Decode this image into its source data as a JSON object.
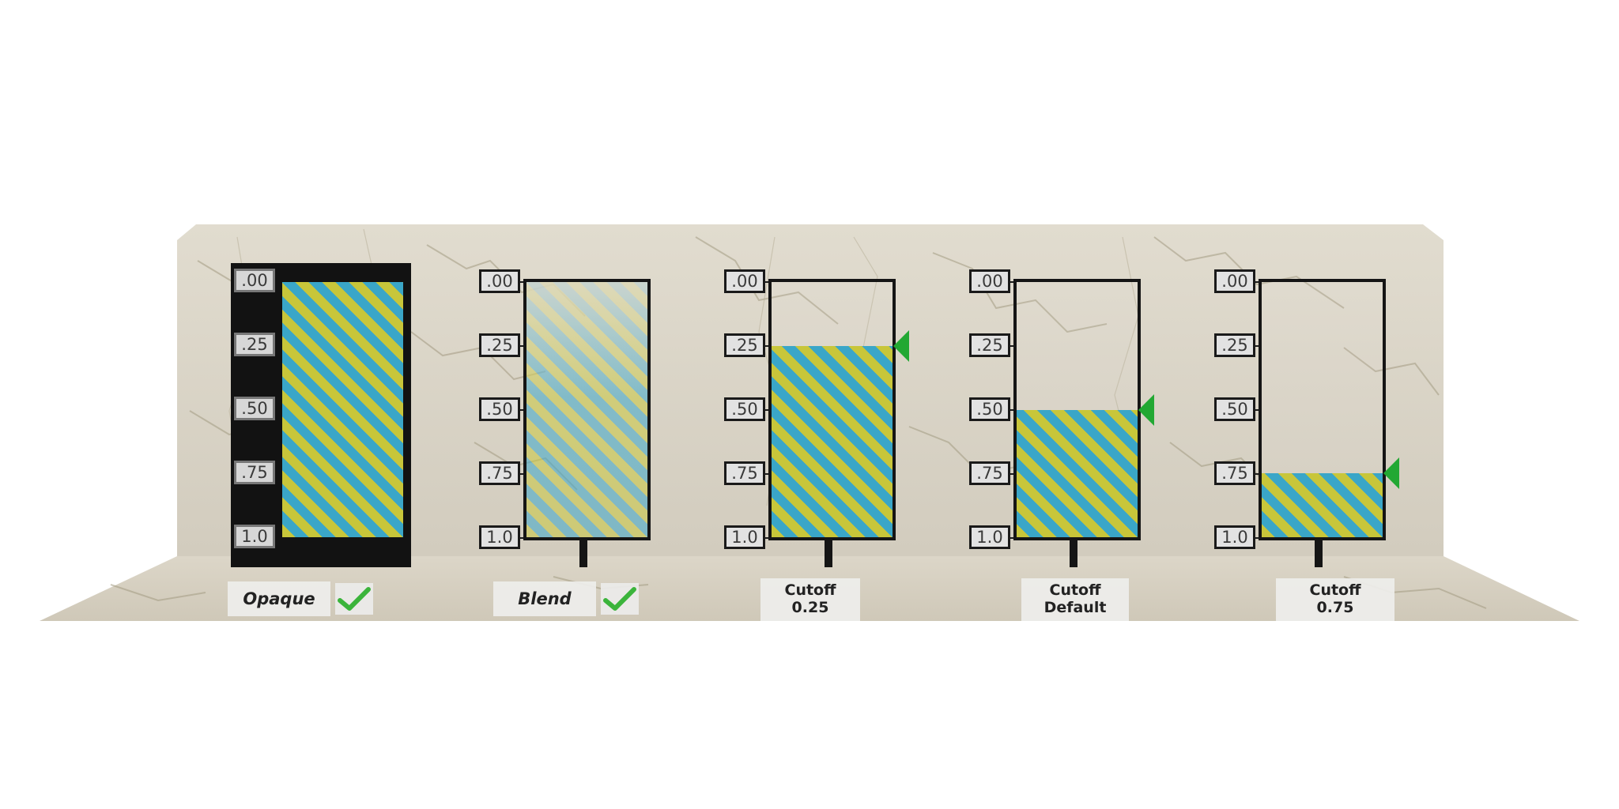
{
  "ticks": [
    ".00",
    ".25",
    ".50",
    ".75",
    "1.0"
  ],
  "panels": [
    {
      "caption_line1": "Opaque",
      "caption_line2": "",
      "checked": true,
      "fill_level": 1.0,
      "pointer": false
    },
    {
      "caption_line1": "Blend",
      "caption_line2": "",
      "checked": true,
      "fill_level": 1.0,
      "pointer": false
    },
    {
      "caption_line1": "Cutoff",
      "caption_line2": "0.25",
      "checked": false,
      "fill_level": 0.75,
      "pointer": true
    },
    {
      "caption_line1": "Cutoff",
      "caption_line2": "Default",
      "checked": false,
      "fill_level": 0.5,
      "pointer": true
    },
    {
      "caption_line1": "Cutoff",
      "caption_line2": "0.75",
      "checked": false,
      "fill_level": 0.25,
      "pointer": true
    }
  ],
  "colors": {
    "stripe_yellow": "#c8c63a",
    "stripe_blue": "#3aa6c8",
    "frame": "#151515",
    "pointer_green": "#22a833",
    "check_green": "#3bb43b",
    "marble": "#d8d2c4"
  }
}
